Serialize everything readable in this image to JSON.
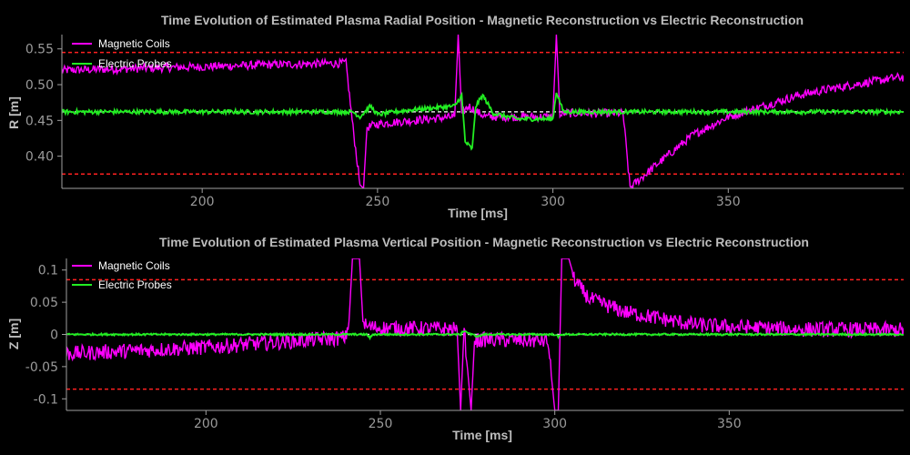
{
  "chart_data": [
    {
      "type": "line",
      "title": "Time Evolution of Estimated Plasma Radial Position - Magnetic Reconstruction vs Electric Reconstruction",
      "xlabel": "Time [ms]",
      "ylabel": "R [m]",
      "xlim": [
        160,
        400
      ],
      "ylim": [
        0.355,
        0.57
      ],
      "xticks": [
        200,
        250,
        300,
        350
      ],
      "yticks": [
        0.4,
        0.45,
        0.5,
        0.55
      ],
      "ytick_labels": [
        "0.40",
        "0.45",
        "0.50",
        "0.55"
      ],
      "legend_position": "top-left",
      "series": [
        {
          "name": "Magnetic Coils",
          "color": "#ff00ff",
          "noise": 0.006,
          "points": [
            [
              160,
              0.52
            ],
            [
              200,
              0.525
            ],
            [
              220,
              0.528
            ],
            [
              241,
              0.53
            ],
            [
              243,
              0.44
            ],
            [
              245,
              0.36
            ],
            [
              246,
              0.355
            ],
            [
              247,
              0.44
            ],
            [
              250,
              0.445
            ],
            [
              260,
              0.45
            ],
            [
              272,
              0.455
            ],
            [
              273,
              0.57
            ],
            [
              274,
              0.46
            ],
            [
              276,
              0.47
            ],
            [
              279,
              0.46
            ],
            [
              281,
              0.455
            ],
            [
              300,
              0.455
            ],
            [
              301,
              0.57
            ],
            [
              302,
              0.455
            ],
            [
              303,
              0.46
            ],
            [
              320,
              0.46
            ],
            [
              322,
              0.356
            ],
            [
              330,
              0.39
            ],
            [
              340,
              0.43
            ],
            [
              350,
              0.455
            ],
            [
              360,
              0.47
            ],
            [
              370,
              0.485
            ],
            [
              380,
              0.495
            ],
            [
              398,
              0.51
            ]
          ]
        },
        {
          "name": "Electric Probes",
          "color": "#22ee22",
          "noise": 0.003,
          "points": [
            [
              160,
              0.462
            ],
            [
              243,
              0.462
            ],
            [
              245,
              0.455
            ],
            [
              248,
              0.47
            ],
            [
              250,
              0.458
            ],
            [
              255,
              0.462
            ],
            [
              260,
              0.465
            ],
            [
              272,
              0.47
            ],
            [
              274,
              0.485
            ],
            [
              275,
              0.42
            ],
            [
              277,
              0.41
            ],
            [
              278,
              0.47
            ],
            [
              280,
              0.485
            ],
            [
              283,
              0.46
            ],
            [
              290,
              0.452
            ],
            [
              300,
              0.452
            ],
            [
              301,
              0.49
            ],
            [
              303,
              0.462
            ],
            [
              398,
              0.462
            ]
          ]
        }
      ],
      "hlines": [
        {
          "y": 0.545,
          "color": "#ff2020",
          "style": "dashed"
        },
        {
          "y": 0.375,
          "color": "#ff2020",
          "style": "dashed"
        },
        {
          "y": 0.462,
          "color": "#dddddd",
          "style": "dashed"
        }
      ]
    },
    {
      "type": "line",
      "title": "Time Evolution of Estimated Plasma Vertical Position - Magnetic Reconstruction vs Electric Reconstruction",
      "xlabel": "Time [ms]",
      "ylabel": "Z [m]",
      "xlim": [
        160,
        400
      ],
      "ylim": [
        -0.118,
        0.118
      ],
      "xticks": [
        200,
        250,
        300,
        350
      ],
      "yticks": [
        -0.1,
        -0.05,
        0,
        0.05,
        0.1
      ],
      "ytick_labels": [
        "-0.1",
        "-0.05",
        "0",
        "0.05",
        "0.1"
      ],
      "legend_position": "top-left",
      "series": [
        {
          "name": "Magnetic Coils",
          "color": "#ff00ff",
          "noise": 0.012,
          "points": [
            [
              160,
              -0.03
            ],
            [
              180,
              -0.025
            ],
            [
              200,
              -0.02
            ],
            [
              220,
              -0.012
            ],
            [
              240,
              -0.005
            ],
            [
              241,
              0.02
            ],
            [
              242,
              0.118
            ],
            [
              244,
              0.118
            ],
            [
              245,
              0.02
            ],
            [
              246,
              0.012
            ],
            [
              250,
              0.01
            ],
            [
              272,
              0.008
            ],
            [
              273,
              -0.118
            ],
            [
              274,
              0.01
            ],
            [
              276,
              -0.118
            ],
            [
              277,
              -0.01
            ],
            [
              280,
              -0.008
            ],
            [
              298,
              -0.01
            ],
            [
              300,
              -0.118
            ],
            [
              301,
              -0.118
            ],
            [
              302,
              0.118
            ],
            [
              304,
              0.118
            ],
            [
              306,
              0.08
            ],
            [
              310,
              0.055
            ],
            [
              320,
              0.035
            ],
            [
              330,
              0.025
            ],
            [
              340,
              0.015
            ],
            [
              350,
              0.012
            ],
            [
              370,
              0.008
            ],
            [
              398,
              0.007
            ]
          ]
        },
        {
          "name": "Electric Probes",
          "color": "#22ee22",
          "noise": 0.0015,
          "points": [
            [
              160,
              0.0
            ],
            [
              246,
              0.0
            ],
            [
              247,
              -0.005
            ],
            [
              248,
              0.0
            ],
            [
              273,
              0.0
            ],
            [
              274,
              0.006
            ],
            [
              276,
              0.0
            ],
            [
              278,
              -0.003
            ],
            [
              280,
              0.0
            ],
            [
              300,
              0.0
            ],
            [
              301,
              -0.004
            ],
            [
              302,
              0.0
            ],
            [
              398,
              0.0
            ]
          ]
        }
      ],
      "hlines": [
        {
          "y": 0.085,
          "color": "#ff2020",
          "style": "dashed"
        },
        {
          "y": -0.085,
          "color": "#ff2020",
          "style": "dashed"
        },
        {
          "y": 0.0,
          "color": "#dddddd",
          "style": "dashed"
        }
      ]
    }
  ]
}
